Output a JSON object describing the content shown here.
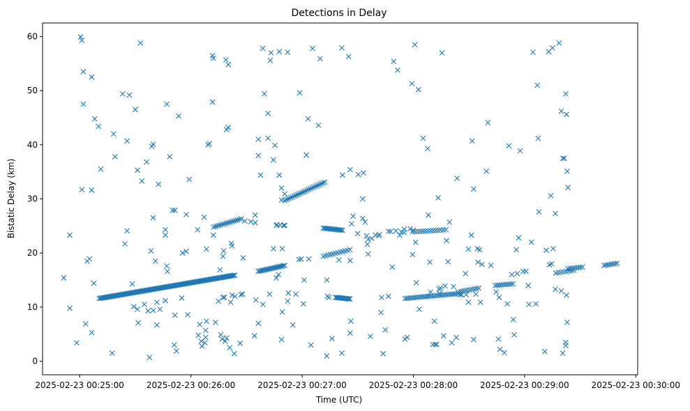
{
  "chart_data": {
    "type": "scatter",
    "title": "Detections in Delay",
    "xlabel": "Time (UTC)",
    "ylabel": "Bistatic Delay (km)",
    "x_unit": "seconds after 2025-02-23 00:25:00",
    "xlim": [
      -20,
      301
    ],
    "ylim": [
      -2.5,
      62.5
    ],
    "x_ticks": [
      {
        "value": 0,
        "label": "2025-02-23 00:25:00"
      },
      {
        "value": 60,
        "label": "2025-02-23 00:26:00"
      },
      {
        "value": 120,
        "label": "2025-02-23 00:27:00"
      },
      {
        "value": 180,
        "label": "2025-02-23 00:28:00"
      },
      {
        "value": 240,
        "label": "2025-02-23 00:29:00"
      },
      {
        "value": 300,
        "label": "2025-02-23 00:30:00"
      }
    ],
    "y_ticks": [
      {
        "value": 0,
        "label": "0"
      },
      {
        "value": 10,
        "label": "10"
      },
      {
        "value": 20,
        "label": "20"
      },
      {
        "value": 30,
        "label": "30"
      },
      {
        "value": 40,
        "label": "40"
      },
      {
        "value": 50,
        "label": "50"
      },
      {
        "value": 60,
        "label": "60"
      }
    ],
    "marker": "x",
    "color": "#1f77b4",
    "grid": false,
    "tracks": [
      {
        "x_start": 10.6,
        "x_end": 83.7,
        "y_start": 11.6,
        "y_end": 15.9,
        "count": 120
      },
      {
        "x_start": 72.2,
        "x_end": 87.1,
        "y_start": 24.8,
        "y_end": 26.3,
        "count": 16
      },
      {
        "x_start": 96.3,
        "x_end": 110.6,
        "y_start": 16.6,
        "y_end": 17.7,
        "count": 20
      },
      {
        "x_start": 110.6,
        "x_end": 132.2,
        "y_start": 29.7,
        "y_end": 33.1,
        "count": 26
      },
      {
        "x_start": 131.4,
        "x_end": 141.8,
        "y_start": 24.6,
        "y_end": 24.2,
        "count": 16
      },
      {
        "x_start": 131.4,
        "x_end": 145.8,
        "y_start": 19.4,
        "y_end": 20.6,
        "count": 12
      },
      {
        "x_start": 138.1,
        "x_end": 145.8,
        "y_start": 11.8,
        "y_end": 11.5,
        "count": 14
      },
      {
        "x_start": 175.5,
        "x_end": 204.2,
        "y_start": 11.6,
        "y_end": 12.5,
        "count": 30
      },
      {
        "x_start": 179.6,
        "x_end": 197.6,
        "y_start": 23.9,
        "y_end": 24.3,
        "count": 14
      },
      {
        "x_start": 204.2,
        "x_end": 215.3,
        "y_start": 12.8,
        "y_end": 13.5,
        "count": 10
      },
      {
        "x_start": 224.3,
        "x_end": 233.7,
        "y_start": 14.0,
        "y_end": 14.3,
        "count": 10
      },
      {
        "x_start": 256.9,
        "x_end": 266.6,
        "y_start": 16.3,
        "y_end": 16.8,
        "count": 8
      },
      {
        "x_start": 263.4,
        "x_end": 271.2,
        "y_start": 17.1,
        "y_end": 17.4,
        "count": 8
      },
      {
        "x_start": 282.8,
        "x_end": 289.9,
        "y_start": 17.7,
        "y_end": 18.1,
        "count": 8
      }
    ],
    "points": [
      [
        -8.6,
        15.4
      ],
      [
        -5.3,
        23.3
      ],
      [
        -5.3,
        9.8
      ],
      [
        -1.6,
        3.4
      ],
      [
        0.5,
        59.9
      ],
      [
        1.2,
        59.3
      ],
      [
        1.2,
        31.7
      ],
      [
        2.0,
        53.5
      ],
      [
        2.0,
        47.5
      ],
      [
        3.2,
        6.9
      ],
      [
        4.1,
        18.5
      ],
      [
        5.3,
        18.9
      ],
      [
        6.5,
        5.3
      ],
      [
        6.5,
        52.5
      ],
      [
        6.5,
        31.6
      ],
      [
        7.7,
        14.4
      ],
      [
        8.1,
        44.8
      ],
      [
        10.2,
        43.4
      ],
      [
        11.4,
        35.5
      ],
      [
        17.5,
        1.5
      ],
      [
        18.3,
        42.0
      ],
      [
        19.1,
        37.8
      ],
      [
        23.2,
        49.4
      ],
      [
        24.4,
        21.7
      ],
      [
        25.6,
        40.7
      ],
      [
        25.6,
        24.1
      ],
      [
        26.8,
        49.2
      ],
      [
        28.4,
        14.3
      ],
      [
        29.2,
        10.1
      ],
      [
        30.0,
        46.5
      ],
      [
        31.2,
        35.3
      ],
      [
        31.2,
        9.6
      ],
      [
        31.6,
        7.1
      ],
      [
        32.8,
        58.8
      ],
      [
        33.6,
        33.3
      ],
      [
        34.9,
        10.5
      ],
      [
        36.1,
        36.8
      ],
      [
        36.9,
        9.3
      ],
      [
        37.7,
        0.7
      ],
      [
        38.5,
        20.4
      ],
      [
        38.9,
        39.7
      ],
      [
        39.7,
        40.1
      ],
      [
        39.7,
        9.4
      ],
      [
        39.7,
        26.5
      ],
      [
        40.9,
        18.5
      ],
      [
        41.7,
        10.9
      ],
      [
        41.7,
        6.7
      ],
      [
        42.5,
        32.7
      ],
      [
        43.3,
        9.6
      ],
      [
        46.2,
        11.2
      ],
      [
        46.2,
        24.3
      ],
      [
        46.2,
        23.3
      ],
      [
        47.0,
        47.5
      ],
      [
        47.0,
        17.6
      ],
      [
        47.4,
        16.6
      ],
      [
        48.6,
        37.8
      ],
      [
        50.2,
        27.9
      ],
      [
        51.0,
        3.0
      ],
      [
        51.4,
        27.9
      ],
      [
        51.4,
        8.5
      ],
      [
        52.2,
        1.9
      ],
      [
        53.4,
        45.3
      ],
      [
        55.1,
        11.7
      ],
      [
        55.5,
        20.0
      ],
      [
        57.5,
        27.1
      ],
      [
        57.5,
        20.3
      ],
      [
        58.3,
        8.6
      ],
      [
        59.1,
        33.6
      ],
      [
        63.6,
        24.3
      ],
      [
        64.0,
        4.8
      ],
      [
        64.8,
        6.8
      ],
      [
        65.6,
        3.7
      ],
      [
        66.0,
        2.8
      ],
      [
        67.2,
        26.6
      ],
      [
        67.6,
        3.4
      ],
      [
        68.0,
        4.4
      ],
      [
        68.0,
        5.7
      ],
      [
        68.4,
        7.4
      ],
      [
        68.4,
        20.7
      ],
      [
        69.2,
        40.0
      ],
      [
        70.0,
        40.2
      ],
      [
        71.7,
        47.9
      ],
      [
        71.7,
        56.5
      ],
      [
        72.1,
        56.0
      ],
      [
        72.1,
        23.3
      ],
      [
        73.3,
        7.2
      ],
      [
        74.9,
        11.1
      ],
      [
        75.7,
        16.9
      ],
      [
        76.1,
        4.9
      ],
      [
        76.9,
        4.1
      ],
      [
        77.3,
        19.4
      ],
      [
        77.3,
        11.8
      ],
      [
        77.7,
        20.4
      ],
      [
        78.1,
        11.8
      ],
      [
        78.5,
        3.7
      ],
      [
        78.9,
        55.7
      ],
      [
        79.3,
        4.3
      ],
      [
        79.3,
        42.8
      ],
      [
        80.2,
        43.2
      ],
      [
        80.2,
        54.8
      ],
      [
        81.0,
        2.5
      ],
      [
        81.4,
        10.9
      ],
      [
        81.8,
        21.8
      ],
      [
        82.2,
        12.2
      ],
      [
        82.2,
        21.3
      ],
      [
        83.4,
        1.4
      ],
      [
        83.8,
        12.0
      ],
      [
        86.6,
        3.3
      ],
      [
        87.0,
        12.3
      ],
      [
        87.8,
        12.4
      ],
      [
        88.2,
        19.1
      ],
      [
        89.1,
        25.9
      ],
      [
        92.3,
        25.8
      ],
      [
        94.3,
        4.7
      ],
      [
        94.7,
        27.0
      ],
      [
        94.7,
        25.6
      ],
      [
        95.1,
        11.3
      ],
      [
        96.4,
        41.0
      ],
      [
        96.4,
        38.0
      ],
      [
        96.4,
        7.0
      ],
      [
        97.6,
        34.4
      ],
      [
        98.8,
        10.5
      ],
      [
        98.8,
        57.8
      ],
      [
        99.6,
        49.4
      ],
      [
        101.6,
        45.8
      ],
      [
        101.6,
        41.2
      ],
      [
        102.4,
        12.4
      ],
      [
        102.8,
        55.6
      ],
      [
        103.2,
        57.0
      ],
      [
        104.5,
        20.8
      ],
      [
        104.5,
        37.2
      ],
      [
        105.3,
        39.9
      ],
      [
        106.1,
        15.4
      ],
      [
        106.1,
        25.1
      ],
      [
        106.5,
        25.2
      ],
      [
        107.3,
        16.0
      ],
      [
        107.7,
        57.2
      ],
      [
        107.7,
        34.4
      ],
      [
        108.1,
        25.2
      ],
      [
        108.9,
        32.0
      ],
      [
        108.9,
        4.0
      ],
      [
        108.9,
        29.8
      ],
      [
        109.3,
        9.1
      ],
      [
        109.3,
        20.8
      ],
      [
        110.1,
        25.1
      ],
      [
        110.6,
        30.9
      ],
      [
        110.6,
        25.1
      ],
      [
        112.2,
        57.1
      ],
      [
        112.2,
        11.1
      ],
      [
        112.6,
        12.6
      ],
      [
        115.0,
        6.7
      ],
      [
        116.6,
        12.4
      ],
      [
        118.3,
        18.8
      ],
      [
        118.7,
        49.6
      ],
      [
        119.5,
        18.9
      ],
      [
        120.7,
        10.6
      ],
      [
        121.1,
        15.0
      ],
      [
        122.3,
        38.1
      ],
      [
        123.2,
        44.8
      ],
      [
        123.6,
        18.9
      ],
      [
        124.8,
        3.0
      ],
      [
        125.6,
        57.8
      ],
      [
        128.8,
        43.6
      ],
      [
        129.7,
        55.9
      ],
      [
        133.3,
        1.0
      ],
      [
        133.3,
        15.0
      ],
      [
        133.7,
        12.0
      ],
      [
        134.5,
        11.8
      ],
      [
        136.1,
        4.2
      ],
      [
        139.8,
        18.7
      ],
      [
        141.4,
        57.9
      ],
      [
        141.4,
        1.5
      ],
      [
        141.8,
        34.4
      ],
      [
        145.1,
        56.3
      ],
      [
        145.9,
        35.4
      ],
      [
        145.9,
        18.6
      ],
      [
        145.9,
        5.2
      ],
      [
        146.3,
        7.4
      ],
      [
        146.7,
        25.4
      ],
      [
        147.5,
        26.8
      ],
      [
        149.9,
        23.6
      ],
      [
        150.3,
        34.5
      ],
      [
        152.7,
        30.0
      ],
      [
        152.7,
        26.4
      ],
      [
        153.1,
        34.8
      ],
      [
        154.0,
        25.7
      ],
      [
        154.8,
        23.2
      ],
      [
        155.2,
        21.6
      ],
      [
        155.6,
        19.8
      ],
      [
        155.6,
        22.5
      ],
      [
        156.8,
        4.6
      ],
      [
        157.6,
        22.7
      ],
      [
        159.6,
        23.3
      ],
      [
        161.3,
        23.2
      ],
      [
        161.7,
        23.4
      ],
      [
        162.5,
        9.0
      ],
      [
        162.9,
        11.8
      ],
      [
        163.7,
        1.4
      ],
      [
        164.9,
        5.8
      ],
      [
        166.6,
        12.0
      ],
      [
        166.6,
        24.0
      ],
      [
        167.8,
        24.0
      ],
      [
        168.6,
        17.4
      ],
      [
        169.4,
        55.4
      ],
      [
        170.6,
        24.1
      ],
      [
        171.5,
        53.8
      ],
      [
        172.7,
        23.3
      ],
      [
        173.5,
        23.9
      ],
      [
        175.1,
        23.8
      ],
      [
        175.1,
        24.4
      ],
      [
        175.5,
        4.1
      ],
      [
        176.7,
        4.4
      ],
      [
        178.3,
        24.5
      ],
      [
        179.2,
        51.3
      ],
      [
        179.6,
        19.7
      ],
      [
        180.0,
        24.2
      ],
      [
        180.8,
        58.5
      ],
      [
        181.2,
        22.0
      ],
      [
        181.6,
        14.5
      ],
      [
        182.8,
        50.2
      ],
      [
        183.2,
        9.6
      ],
      [
        185.3,
        41.2
      ],
      [
        187.7,
        39.3
      ],
      [
        188.1,
        27.0
      ],
      [
        188.9,
        18.3
      ],
      [
        189.3,
        12.8
      ],
      [
        190.5,
        3.1
      ],
      [
        191.4,
        7.4
      ],
      [
        191.8,
        3.1
      ],
      [
        192.6,
        3.1
      ],
      [
        193.4,
        30.2
      ],
      [
        193.8,
        13.3
      ],
      [
        194.2,
        12.5
      ],
      [
        194.6,
        13.5
      ],
      [
        195.4,
        57.0
      ],
      [
        196.3,
        4.7
      ],
      [
        197.1,
        13.9
      ],
      [
        197.9,
        22.3
      ],
      [
        198.7,
        18.4
      ],
      [
        199.5,
        25.7
      ],
      [
        200.7,
        3.4
      ],
      [
        201.6,
        13.8
      ],
      [
        203.2,
        4.4
      ],
      [
        203.6,
        33.8
      ],
      [
        205.2,
        12.3
      ],
      [
        206.0,
        12.3
      ],
      [
        208.1,
        16.2
      ],
      [
        208.5,
        12.3
      ],
      [
        209.7,
        10.9
      ],
      [
        209.7,
        20.7
      ],
      [
        211.3,
        23.3
      ],
      [
        211.7,
        40.7
      ],
      [
        212.5,
        4.0
      ],
      [
        212.5,
        31.8
      ],
      [
        213.7,
        12.4
      ],
      [
        214.5,
        20.8
      ],
      [
        214.9,
        18.3
      ],
      [
        215.8,
        20.6
      ],
      [
        216.2,
        10.9
      ],
      [
        217.0,
        17.9
      ],
      [
        219.4,
        35.1
      ],
      [
        220.2,
        44.1
      ],
      [
        221.8,
        17.7
      ],
      [
        224.7,
        12.8
      ],
      [
        225.9,
        4.1
      ],
      [
        226.3,
        11.8
      ],
      [
        226.7,
        2.2
      ],
      [
        229.1,
        1.6
      ],
      [
        230.7,
        10.6
      ],
      [
        231.5,
        39.8
      ],
      [
        233.1,
        16.0
      ],
      [
        233.9,
        7.7
      ],
      [
        234.4,
        4.9
      ],
      [
        235.6,
        20.6
      ],
      [
        236.0,
        16.2
      ],
      [
        236.8,
        22.8
      ],
      [
        237.6,
        38.9
      ],
      [
        239.2,
        16.6
      ],
      [
        240.8,
        16.6
      ],
      [
        242.0,
        14.0
      ],
      [
        242.4,
        10.5
      ],
      [
        243.7,
        22.0
      ],
      [
        244.5,
        57.1
      ],
      [
        246.1,
        10.6
      ],
      [
        246.9,
        51.0
      ],
      [
        247.3,
        41.2
      ],
      [
        247.7,
        27.6
      ],
      [
        250.9,
        1.8
      ],
      [
        251.7,
        20.5
      ],
      [
        253.0,
        57.2
      ],
      [
        253.4,
        17.8
      ],
      [
        254.2,
        30.6
      ],
      [
        254.6,
        18.0
      ],
      [
        255.0,
        57.9
      ],
      [
        255.4,
        20.8
      ],
      [
        256.6,
        27.3
      ],
      [
        256.6,
        13.3
      ],
      [
        258.6,
        58.8
      ],
      [
        259.8,
        46.2
      ],
      [
        259.8,
        13.0
      ],
      [
        260.6,
        1.5
      ],
      [
        260.6,
        37.5
      ],
      [
        261.4,
        37.5
      ],
      [
        262.2,
        3.5
      ],
      [
        262.2,
        2.9
      ],
      [
        262.2,
        49.4
      ],
      [
        262.6,
        12.2
      ],
      [
        262.6,
        45.6
      ],
      [
        263.0,
        7.2
      ],
      [
        263.0,
        35.1
      ],
      [
        263.4,
        32.1
      ]
    ]
  }
}
